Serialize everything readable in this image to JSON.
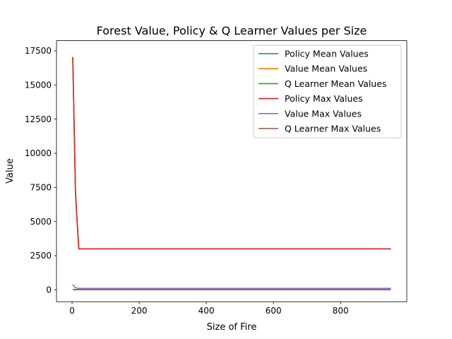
{
  "chart_data": {
    "type": "line",
    "title": "Forest Value, Policy & Q Learner Values per Size",
    "xlabel": "Size of Fire",
    "ylabel": "Value",
    "xlim": [
      -46.5,
      997.5
    ],
    "ylim": [
      -870,
      18240
    ],
    "xticks": [
      0,
      200,
      400,
      600,
      800
    ],
    "yticks": [
      0,
      2500,
      5000,
      7500,
      10000,
      12500,
      15000,
      17500
    ],
    "grid": false,
    "legend_position": "top-right",
    "series": [
      {
        "name": "Policy Mean Values",
        "color": "#1f77b4",
        "points": [
          [
            2,
            17000
          ],
          [
            10,
            7200
          ],
          [
            15,
            5000
          ],
          [
            20,
            3000
          ],
          [
            950,
            3000
          ]
        ]
      },
      {
        "name": "Value Mean Values",
        "color": "#ff7f0e",
        "points": [
          [
            2,
            17000
          ],
          [
            10,
            7200
          ],
          [
            15,
            5000
          ],
          [
            20,
            3000
          ],
          [
            950,
            3000
          ]
        ]
      },
      {
        "name": "Q Learner Mean Values",
        "color": "#2ca02c",
        "points": [
          [
            2,
            10
          ],
          [
            950,
            10
          ]
        ]
      },
      {
        "name": "Policy Max Values",
        "color": "#d62728",
        "points": [
          [
            2,
            17050
          ],
          [
            10,
            7200
          ],
          [
            15,
            5000
          ],
          [
            20,
            3000
          ],
          [
            950,
            3000
          ]
        ]
      },
      {
        "name": "Value Max Values",
        "color": "#9467bd",
        "points": [
          [
            2,
            400
          ],
          [
            8,
            200
          ],
          [
            15,
            120
          ],
          [
            25,
            110
          ],
          [
            950,
            110
          ]
        ]
      },
      {
        "name": "Q Learner Max Values",
        "color": "#8c564b",
        "points": [
          [
            2,
            20
          ],
          [
            950,
            20
          ]
        ]
      }
    ]
  }
}
